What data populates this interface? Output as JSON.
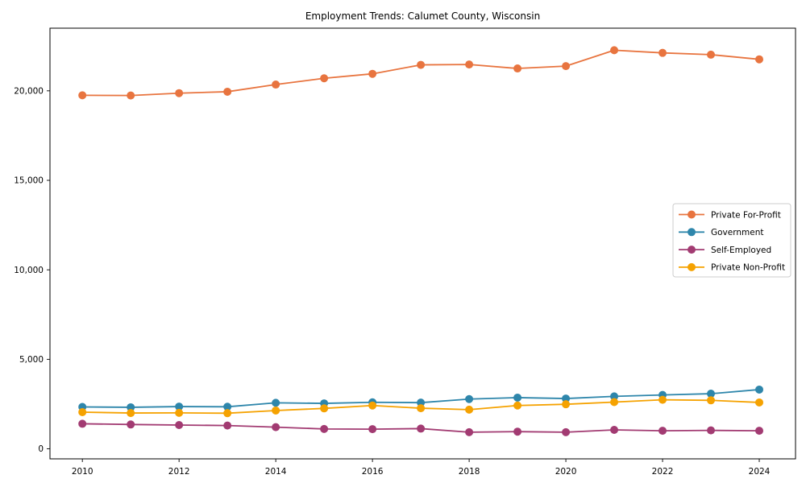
{
  "chart_data": {
    "type": "line",
    "title": "Employment Trends: Calumet County, Wisconsin",
    "xlabel": "",
    "ylabel": "",
    "x": [
      2010,
      2011,
      2012,
      2013,
      2014,
      2015,
      2016,
      2017,
      2018,
      2019,
      2020,
      2021,
      2022,
      2023,
      2024
    ],
    "series": [
      {
        "name": "Private For-Profit",
        "color": "#E8743F",
        "values": [
          19750,
          19740,
          19870,
          19950,
          20350,
          20700,
          20950,
          21450,
          21470,
          21250,
          21380,
          22270,
          22120,
          22020,
          21760
        ]
      },
      {
        "name": "Government",
        "color": "#2E86AB",
        "values": [
          2340,
          2320,
          2360,
          2350,
          2570,
          2540,
          2600,
          2580,
          2780,
          2860,
          2810,
          2930,
          3010,
          3080,
          3310
        ]
      },
      {
        "name": "Self-Employed",
        "color": "#A23B72",
        "values": [
          1400,
          1360,
          1330,
          1300,
          1210,
          1110,
          1100,
          1130,
          930,
          960,
          930,
          1060,
          1010,
          1030,
          1010
        ]
      },
      {
        "name": "Private Non-Profit",
        "color": "#F5A201",
        "values": [
          2050,
          2000,
          2010,
          1990,
          2140,
          2260,
          2420,
          2270,
          2190,
          2420,
          2490,
          2610,
          2740,
          2710,
          2590
        ]
      }
    ],
    "xticks": {
      "values": [
        2010,
        2012,
        2014,
        2016,
        2018,
        2020,
        2022,
        2024
      ],
      "labels": [
        "2010",
        "2012",
        "2014",
        "2016",
        "2018",
        "2020",
        "2022",
        "2024"
      ]
    },
    "yticks": {
      "values": [
        0,
        5000,
        10000,
        15000,
        20000
      ],
      "labels": [
        "0",
        "5,000",
        "10,000",
        "15,000",
        "20,000"
      ]
    },
    "xlim": [
      2009.33,
      2024.75
    ],
    "ylim": [
      -560,
      23500
    ],
    "grid": false,
    "marker": "circle",
    "legend": {
      "position": "center right",
      "border_color": "#cccccc",
      "background": "#ffffff"
    },
    "axis_color": "#000000",
    "tick_label_color": "#000000"
  }
}
